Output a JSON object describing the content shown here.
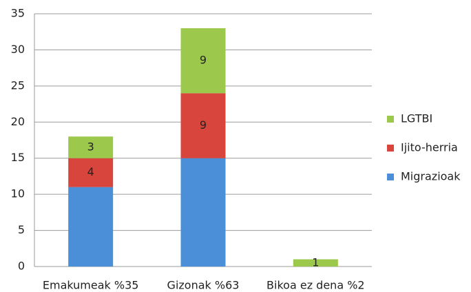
{
  "chart_data": {
    "type": "stacked_bar",
    "categories": [
      "Emakumeak %35",
      "Gizonak %63",
      "Bikoa ez dena %2"
    ],
    "series": [
      {
        "name": "Migrazioak",
        "color": "#4a8fd8",
        "values": [
          11,
          15,
          0
        ],
        "labels": false
      },
      {
        "name": "Ijito-herria",
        "color": "#d8453c",
        "values": [
          4,
          9,
          0
        ],
        "labels": true
      },
      {
        "name": "LGTBI",
        "color": "#9cc84b",
        "values": [
          3,
          9,
          1
        ],
        "labels": true
      }
    ],
    "ylim": [
      0,
      35
    ],
    "yticks": [
      0,
      5,
      10,
      15,
      20,
      25,
      30,
      35
    ],
    "grid": true,
    "legend": "right"
  }
}
